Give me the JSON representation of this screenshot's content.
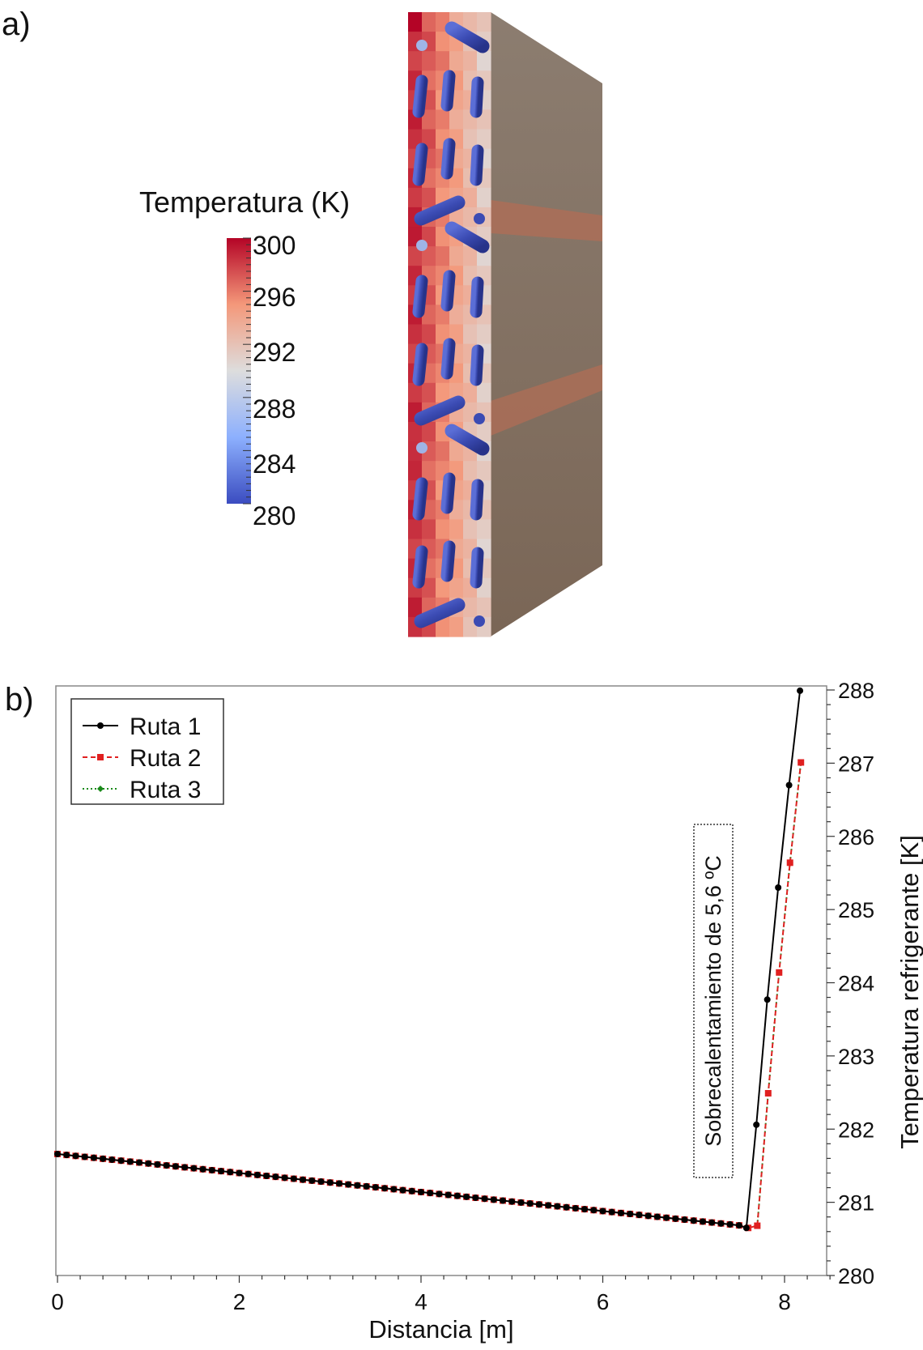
{
  "panel_a": {
    "label": "a)",
    "colorbar": {
      "title": "Temperatura (K)",
      "ticks": [
        "300",
        "296",
        "292",
        "288",
        "284",
        "280"
      ],
      "min": 280,
      "max": 300,
      "colors": [
        "#3b4cc0",
        "#8db0fe",
        "#dddddd",
        "#f4987a",
        "#b40426"
      ]
    }
  },
  "panel_b": {
    "label": "b)",
    "annotation": "Sobrecalentamiento de 5,6 ºC"
  },
  "chart_data": {
    "type": "line",
    "xlabel": "Distancia [m]",
    "ylabel": "Temperatura refrigerante [K]",
    "xlim": [
      0,
      8.5
    ],
    "ylim": [
      280,
      288
    ],
    "x_ticks": [
      "0",
      "2",
      "4",
      "6",
      "8"
    ],
    "y_ticks": [
      "280",
      "281",
      "282",
      "283",
      "284",
      "285",
      "286",
      "287",
      "288"
    ],
    "legend_position": "top-left",
    "grid": false,
    "series": [
      {
        "name": "Ruta 1",
        "color": "#000000",
        "marker": "circle",
        "dash": "solid",
        "x": [
          0,
          0.1,
          0.2,
          0.3,
          0.4,
          0.5,
          0.6,
          0.7,
          0.8,
          0.9,
          1.0,
          1.1,
          1.2,
          1.3,
          1.4,
          1.5,
          1.6,
          1.7,
          1.8,
          1.9,
          2.0,
          2.1,
          2.2,
          2.3,
          2.4,
          2.5,
          2.6,
          2.7,
          2.8,
          2.9,
          3.0,
          3.1,
          3.2,
          3.3,
          3.4,
          3.5,
          3.6,
          3.7,
          3.8,
          3.9,
          4.0,
          4.1,
          4.2,
          4.3,
          4.4,
          4.5,
          4.6,
          4.7,
          4.8,
          4.9,
          5.0,
          5.1,
          5.2,
          5.3,
          5.4,
          5.5,
          5.6,
          5.7,
          5.8,
          5.9,
          6.0,
          6.1,
          6.2,
          6.3,
          6.4,
          6.5,
          6.6,
          6.7,
          6.8,
          6.9,
          7.0,
          7.1,
          7.2,
          7.3,
          7.4,
          7.5,
          7.58,
          7.69,
          7.81,
          7.93,
          8.05,
          8.17
        ],
        "y": [
          281.66,
          281.647,
          281.634,
          281.621,
          281.608,
          281.595,
          281.582,
          281.569,
          281.556,
          281.543,
          281.53,
          281.517,
          281.504,
          281.491,
          281.478,
          281.465,
          281.452,
          281.439,
          281.426,
          281.413,
          281.4,
          281.387,
          281.374,
          281.361,
          281.348,
          281.335,
          281.322,
          281.309,
          281.296,
          281.283,
          281.27,
          281.257,
          281.244,
          281.231,
          281.218,
          281.205,
          281.192,
          281.179,
          281.166,
          281.153,
          281.14,
          281.127,
          281.114,
          281.101,
          281.088,
          281.075,
          281.062,
          281.049,
          281.036,
          281.023,
          281.01,
          280.997,
          280.984,
          280.971,
          280.958,
          280.945,
          280.932,
          280.919,
          280.906,
          280.893,
          280.88,
          280.867,
          280.854,
          280.841,
          280.828,
          280.815,
          280.802,
          280.789,
          280.776,
          280.763,
          280.75,
          280.737,
          280.724,
          280.711,
          280.698,
          280.685,
          280.65,
          282.06,
          283.77,
          285.3,
          286.7,
          287.99
        ]
      },
      {
        "name": "Ruta 2",
        "color": "#e02020",
        "marker": "square",
        "dash": "dashed",
        "x": [
          0,
          0.1,
          0.2,
          0.3,
          0.4,
          0.5,
          0.6,
          0.7,
          0.8,
          0.9,
          1.0,
          1.1,
          1.2,
          1.3,
          1.4,
          1.5,
          1.6,
          1.7,
          1.8,
          1.9,
          2.0,
          2.1,
          2.2,
          2.3,
          2.4,
          2.5,
          2.6,
          2.7,
          2.8,
          2.9,
          3.0,
          3.1,
          3.2,
          3.3,
          3.4,
          3.5,
          3.6,
          3.7,
          3.8,
          3.9,
          4.0,
          4.1,
          4.2,
          4.3,
          4.4,
          4.5,
          4.6,
          4.7,
          4.8,
          4.9,
          5.0,
          5.1,
          5.2,
          5.3,
          5.4,
          5.5,
          5.6,
          5.7,
          5.8,
          5.9,
          6.0,
          6.1,
          6.2,
          6.3,
          6.4,
          6.5,
          6.6,
          6.7,
          6.8,
          6.9,
          7.0,
          7.1,
          7.2,
          7.3,
          7.4,
          7.5,
          7.6,
          7.7,
          7.82,
          7.94,
          8.06,
          8.18
        ],
        "y": [
          281.66,
          281.647,
          281.634,
          281.621,
          281.608,
          281.595,
          281.582,
          281.569,
          281.556,
          281.543,
          281.53,
          281.517,
          281.504,
          281.491,
          281.478,
          281.465,
          281.452,
          281.439,
          281.426,
          281.413,
          281.4,
          281.387,
          281.374,
          281.361,
          281.348,
          281.335,
          281.322,
          281.309,
          281.296,
          281.283,
          281.27,
          281.257,
          281.244,
          281.231,
          281.218,
          281.205,
          281.192,
          281.179,
          281.166,
          281.153,
          281.14,
          281.127,
          281.114,
          281.101,
          281.088,
          281.075,
          281.062,
          281.049,
          281.036,
          281.023,
          281.01,
          280.997,
          280.984,
          280.971,
          280.958,
          280.945,
          280.932,
          280.919,
          280.906,
          280.893,
          280.88,
          280.867,
          280.854,
          280.841,
          280.828,
          280.815,
          280.802,
          280.789,
          280.776,
          280.763,
          280.75,
          280.737,
          280.724,
          280.711,
          280.698,
          280.685,
          280.65,
          280.68,
          282.49,
          284.14,
          285.64,
          287.01
        ]
      },
      {
        "name": "Ruta 3",
        "color": "#1a8a1a",
        "marker": "diamond",
        "dash": "dotted",
        "x": [
          0,
          0.1,
          0.2,
          0.3,
          0.4,
          0.5,
          0.6,
          0.7,
          0.8,
          0.9,
          1.0,
          1.1,
          1.2,
          1.3,
          1.4,
          1.5,
          1.6,
          1.7,
          1.8,
          1.9,
          2.0,
          2.1,
          2.2,
          2.3,
          2.4,
          2.5,
          2.6,
          2.7,
          2.8,
          2.9,
          3.0,
          3.1,
          3.2,
          3.3,
          3.4,
          3.5,
          3.6,
          3.7,
          3.8,
          3.9,
          4.0,
          4.1,
          4.2,
          4.3,
          4.4,
          4.5,
          4.6,
          4.7,
          4.8,
          4.9,
          5.0,
          5.1,
          5.2,
          5.3,
          5.4,
          5.5,
          5.6,
          5.7,
          5.8,
          5.9,
          6.0,
          6.1,
          6.2,
          6.3,
          6.4,
          6.5,
          6.6,
          6.7,
          6.8,
          6.9,
          7.0,
          7.1,
          7.2,
          7.3,
          7.4,
          7.5,
          7.6,
          7.7,
          7.82,
          7.94,
          8.06,
          8.18
        ],
        "y": [
          281.66,
          281.647,
          281.634,
          281.621,
          281.608,
          281.595,
          281.582,
          281.569,
          281.556,
          281.543,
          281.53,
          281.517,
          281.504,
          281.491,
          281.478,
          281.465,
          281.452,
          281.439,
          281.426,
          281.413,
          281.4,
          281.387,
          281.374,
          281.361,
          281.348,
          281.335,
          281.322,
          281.309,
          281.296,
          281.283,
          281.27,
          281.257,
          281.244,
          281.231,
          281.218,
          281.205,
          281.192,
          281.179,
          281.166,
          281.153,
          281.14,
          281.127,
          281.114,
          281.101,
          281.088,
          281.075,
          281.062,
          281.049,
          281.036,
          281.023,
          281.01,
          280.997,
          280.984,
          280.971,
          280.958,
          280.945,
          280.932,
          280.919,
          280.906,
          280.893,
          280.88,
          280.867,
          280.854,
          280.841,
          280.828,
          280.815,
          280.802,
          280.789,
          280.776,
          280.763,
          280.75,
          280.737,
          280.724,
          280.711,
          280.698,
          280.685,
          280.65,
          280.68,
          282.49,
          284.14,
          285.64,
          287.01
        ]
      }
    ]
  }
}
